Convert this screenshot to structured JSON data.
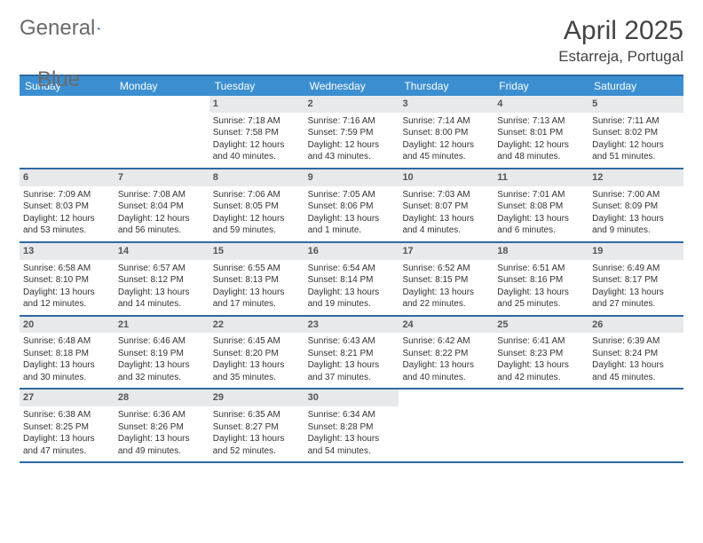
{
  "logo": {
    "word1": "General",
    "word2": "Blue",
    "triangle_color": "#2f69a3"
  },
  "title": "April 2025",
  "location": "Estarreja, Portugal",
  "colors": {
    "header_bg": "#3b8fd1",
    "header_text": "#ffffff",
    "rule": "#2f69a3",
    "daynum_bg": "#e7e9eb",
    "daynum_text": "#555555",
    "body_text": "#333333",
    "logo_text": "#6a6a6a"
  },
  "typography": {
    "title_fontsize": 30,
    "location_fontsize": 17,
    "dayhead_fontsize": 12,
    "daynum_fontsize": 11,
    "cell_fontsize": 10
  },
  "day_headers": [
    "Sunday",
    "Monday",
    "Tuesday",
    "Wednesday",
    "Thursday",
    "Friday",
    "Saturday"
  ],
  "weeks": [
    [
      null,
      null,
      {
        "n": "1",
        "sunrise": "7:18 AM",
        "sunset": "7:58 PM",
        "daylight": "12 hours and 40 minutes."
      },
      {
        "n": "2",
        "sunrise": "7:16 AM",
        "sunset": "7:59 PM",
        "daylight": "12 hours and 43 minutes."
      },
      {
        "n": "3",
        "sunrise": "7:14 AM",
        "sunset": "8:00 PM",
        "daylight": "12 hours and 45 minutes."
      },
      {
        "n": "4",
        "sunrise": "7:13 AM",
        "sunset": "8:01 PM",
        "daylight": "12 hours and 48 minutes."
      },
      {
        "n": "5",
        "sunrise": "7:11 AM",
        "sunset": "8:02 PM",
        "daylight": "12 hours and 51 minutes."
      }
    ],
    [
      {
        "n": "6",
        "sunrise": "7:09 AM",
        "sunset": "8:03 PM",
        "daylight": "12 hours and 53 minutes."
      },
      {
        "n": "7",
        "sunrise": "7:08 AM",
        "sunset": "8:04 PM",
        "daylight": "12 hours and 56 minutes."
      },
      {
        "n": "8",
        "sunrise": "7:06 AM",
        "sunset": "8:05 PM",
        "daylight": "12 hours and 59 minutes."
      },
      {
        "n": "9",
        "sunrise": "7:05 AM",
        "sunset": "8:06 PM",
        "daylight": "13 hours and 1 minute."
      },
      {
        "n": "10",
        "sunrise": "7:03 AM",
        "sunset": "8:07 PM",
        "daylight": "13 hours and 4 minutes."
      },
      {
        "n": "11",
        "sunrise": "7:01 AM",
        "sunset": "8:08 PM",
        "daylight": "13 hours and 6 minutes."
      },
      {
        "n": "12",
        "sunrise": "7:00 AM",
        "sunset": "8:09 PM",
        "daylight": "13 hours and 9 minutes."
      }
    ],
    [
      {
        "n": "13",
        "sunrise": "6:58 AM",
        "sunset": "8:10 PM",
        "daylight": "13 hours and 12 minutes."
      },
      {
        "n": "14",
        "sunrise": "6:57 AM",
        "sunset": "8:12 PM",
        "daylight": "13 hours and 14 minutes."
      },
      {
        "n": "15",
        "sunrise": "6:55 AM",
        "sunset": "8:13 PM",
        "daylight": "13 hours and 17 minutes."
      },
      {
        "n": "16",
        "sunrise": "6:54 AM",
        "sunset": "8:14 PM",
        "daylight": "13 hours and 19 minutes."
      },
      {
        "n": "17",
        "sunrise": "6:52 AM",
        "sunset": "8:15 PM",
        "daylight": "13 hours and 22 minutes."
      },
      {
        "n": "18",
        "sunrise": "6:51 AM",
        "sunset": "8:16 PM",
        "daylight": "13 hours and 25 minutes."
      },
      {
        "n": "19",
        "sunrise": "6:49 AM",
        "sunset": "8:17 PM",
        "daylight": "13 hours and 27 minutes."
      }
    ],
    [
      {
        "n": "20",
        "sunrise": "6:48 AM",
        "sunset": "8:18 PM",
        "daylight": "13 hours and 30 minutes."
      },
      {
        "n": "21",
        "sunrise": "6:46 AM",
        "sunset": "8:19 PM",
        "daylight": "13 hours and 32 minutes."
      },
      {
        "n": "22",
        "sunrise": "6:45 AM",
        "sunset": "8:20 PM",
        "daylight": "13 hours and 35 minutes."
      },
      {
        "n": "23",
        "sunrise": "6:43 AM",
        "sunset": "8:21 PM",
        "daylight": "13 hours and 37 minutes."
      },
      {
        "n": "24",
        "sunrise": "6:42 AM",
        "sunset": "8:22 PM",
        "daylight": "13 hours and 40 minutes."
      },
      {
        "n": "25",
        "sunrise": "6:41 AM",
        "sunset": "8:23 PM",
        "daylight": "13 hours and 42 minutes."
      },
      {
        "n": "26",
        "sunrise": "6:39 AM",
        "sunset": "8:24 PM",
        "daylight": "13 hours and 45 minutes."
      }
    ],
    [
      {
        "n": "27",
        "sunrise": "6:38 AM",
        "sunset": "8:25 PM",
        "daylight": "13 hours and 47 minutes."
      },
      {
        "n": "28",
        "sunrise": "6:36 AM",
        "sunset": "8:26 PM",
        "daylight": "13 hours and 49 minutes."
      },
      {
        "n": "29",
        "sunrise": "6:35 AM",
        "sunset": "8:27 PM",
        "daylight": "13 hours and 52 minutes."
      },
      {
        "n": "30",
        "sunrise": "6:34 AM",
        "sunset": "8:28 PM",
        "daylight": "13 hours and 54 minutes."
      },
      null,
      null,
      null
    ]
  ],
  "labels": {
    "sunrise": "Sunrise:",
    "sunset": "Sunset:",
    "daylight": "Daylight:"
  }
}
